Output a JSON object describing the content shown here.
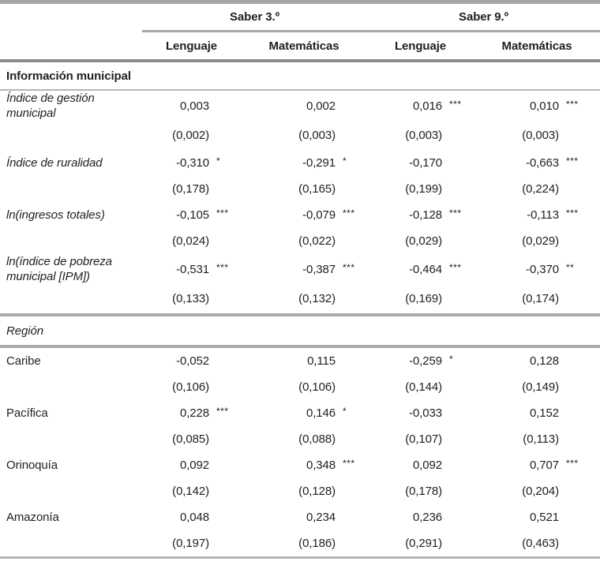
{
  "table": {
    "header": {
      "groups": [
        {
          "label": "Saber 3.º"
        },
        {
          "label": "Saber 9.º"
        }
      ],
      "subcolumns": [
        "Lenguaje",
        "Matemáticas",
        "Lenguaje",
        "Matemáticas"
      ]
    },
    "sections": [
      {
        "title": "Información municipal",
        "title_style": "bold",
        "label_style": "italic",
        "rows": [
          {
            "label": "Índice de gestión municipal",
            "estimates": [
              "0,003",
              "0,002",
              "0,016",
              "0,010"
            ],
            "stars": [
              "",
              "",
              "***",
              "***"
            ],
            "se": [
              "(0,002)",
              "(0,003)",
              "(0,003)",
              "(0,003)"
            ]
          },
          {
            "label": "Índice de ruralidad",
            "estimates": [
              "-0,310",
              "-0,291",
              "-0,170",
              "-0,663"
            ],
            "stars": [
              "*",
              "*",
              "",
              "***"
            ],
            "se": [
              "(0,178)",
              "(0,165)",
              "(0,199)",
              "(0,224)"
            ]
          },
          {
            "label": "ln(ingresos totales)",
            "estimates": [
              "-0,105",
              "-0,079",
              "-0,128",
              "-0,113"
            ],
            "stars": [
              "***",
              "***",
              "***",
              "***"
            ],
            "se": [
              "(0,024)",
              "(0,022)",
              "(0,029)",
              "(0,029)"
            ]
          },
          {
            "label": "ln(índice de pobreza municipal [IPM])",
            "estimates": [
              "-0,531",
              "-0,387",
              "-0,464",
              "-0,370"
            ],
            "stars": [
              "***",
              "***",
              "***",
              "**"
            ],
            "se": [
              "(0,133)",
              "(0,132)",
              "(0,169)",
              "(0,174)"
            ]
          }
        ]
      },
      {
        "title": "Región",
        "title_style": "italic",
        "label_style": "normal",
        "rows": [
          {
            "label": "Caribe",
            "estimates": [
              "-0,052",
              "0,115",
              "-0,259",
              "0,128"
            ],
            "stars": [
              "",
              "",
              "*",
              ""
            ],
            "se": [
              "(0,106)",
              "(0,106)",
              "(0,144)",
              "(0,149)"
            ]
          },
          {
            "label": "Pacífica",
            "estimates": [
              "0,228",
              "0,146",
              "-0,033",
              "0,152"
            ],
            "stars": [
              "***",
              "*",
              "",
              ""
            ],
            "se": [
              "(0,085)",
              "(0,088)",
              "(0,107)",
              "(0,113)"
            ]
          },
          {
            "label": "Orinoquía",
            "estimates": [
              "0,092",
              "0,348",
              "0,092",
              "0,707"
            ],
            "stars": [
              "",
              "***",
              "",
              "***"
            ],
            "se": [
              "(0,142)",
              "(0,128)",
              "(0,178)",
              "(0,204)"
            ]
          },
          {
            "label": "Amazonía",
            "estimates": [
              "0,048",
              "0,234",
              "0,236",
              "0,521"
            ],
            "stars": [
              "",
              "",
              "",
              ""
            ],
            "se": [
              "(0,197)",
              "(0,186)",
              "(0,291)",
              "(0,463)"
            ]
          }
        ]
      }
    ]
  }
}
